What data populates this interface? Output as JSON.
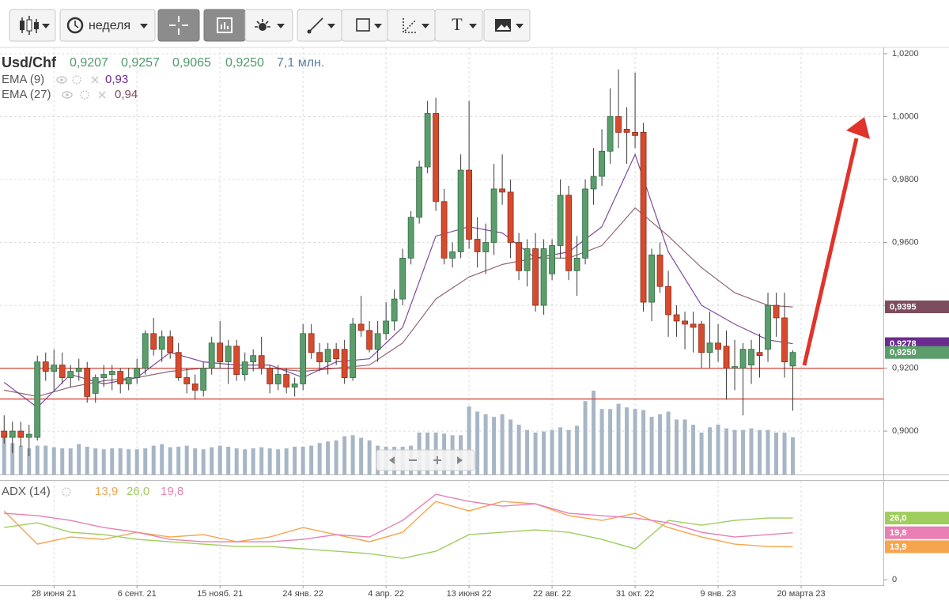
{
  "toolbar": {
    "period": "неделя",
    "text_tool": "T"
  },
  "chart_data": {
    "type": "candlestick",
    "title": "Usd/Chf",
    "ohlc_labels": [
      "0,9207",
      "0,9257",
      "0,9065",
      "0,9250"
    ],
    "volume_label": "7,1 млн.",
    "up_color": "#5b9e6c",
    "down_color": "#d64b2e",
    "volume_color": "#a7b6c6",
    "candles": [
      [
        0.9,
        0.905,
        0.896,
        0.898
      ],
      [
        0.898,
        0.903,
        0.893,
        0.9
      ],
      [
        0.9,
        0.903,
        0.895,
        0.898
      ],
      [
        0.898,
        0.902,
        0.892,
        0.899
      ],
      [
        0.898,
        0.924,
        0.897,
        0.922
      ],
      [
        0.922,
        0.925,
        0.916,
        0.919
      ],
      [
        0.919,
        0.926,
        0.913,
        0.921
      ],
      [
        0.921,
        0.925,
        0.915,
        0.917
      ],
      [
        0.917,
        0.921,
        0.914,
        0.919
      ],
      [
        0.919,
        0.923,
        0.916,
        0.92
      ],
      [
        0.92,
        0.922,
        0.909,
        0.911
      ],
      [
        0.912,
        0.918,
        0.909,
        0.917
      ],
      [
        0.917,
        0.921,
        0.914,
        0.918
      ],
      [
        0.918,
        0.921,
        0.913,
        0.919
      ],
      [
        0.919,
        0.92,
        0.912,
        0.915
      ],
      [
        0.915,
        0.92,
        0.913,
        0.917
      ],
      [
        0.917,
        0.923,
        0.915,
        0.92
      ],
      [
        0.92,
        0.932,
        0.918,
        0.931
      ],
      [
        0.931,
        0.936,
        0.924,
        0.926
      ],
      [
        0.926,
        0.932,
        0.922,
        0.93
      ],
      [
        0.93,
        0.932,
        0.923,
        0.925
      ],
      [
        0.925,
        0.928,
        0.916,
        0.917
      ],
      [
        0.917,
        0.92,
        0.912,
        0.915
      ],
      [
        0.915,
        0.918,
        0.91,
        0.913
      ],
      [
        0.913,
        0.922,
        0.911,
        0.92
      ],
      [
        0.92,
        0.93,
        0.918,
        0.928
      ],
      [
        0.928,
        0.935,
        0.92,
        0.922
      ],
      [
        0.922,
        0.929,
        0.915,
        0.927
      ],
      [
        0.927,
        0.929,
        0.916,
        0.918
      ],
      [
        0.918,
        0.925,
        0.916,
        0.922
      ],
      [
        0.922,
        0.926,
        0.919,
        0.924
      ],
      [
        0.924,
        0.93,
        0.918,
        0.92
      ],
      [
        0.92,
        0.921,
        0.912,
        0.915
      ],
      [
        0.915,
        0.921,
        0.913,
        0.918
      ],
      [
        0.918,
        0.92,
        0.912,
        0.914
      ],
      [
        0.914,
        0.917,
        0.911,
        0.915
      ],
      [
        0.915,
        0.934,
        0.913,
        0.931
      ],
      [
        0.931,
        0.934,
        0.923,
        0.925
      ],
      [
        0.925,
        0.928,
        0.919,
        0.922
      ],
      [
        0.922,
        0.928,
        0.918,
        0.926
      ],
      [
        0.926,
        0.928,
        0.921,
        0.923
      ],
      [
        0.926,
        0.929,
        0.915,
        0.917
      ],
      [
        0.917,
        0.936,
        0.916,
        0.934
      ],
      [
        0.934,
        0.943,
        0.93,
        0.932
      ],
      [
        0.932,
        0.935,
        0.925,
        0.926
      ],
      [
        0.926,
        0.935,
        0.922,
        0.931
      ],
      [
        0.931,
        0.941,
        0.929,
        0.935
      ],
      [
        0.935,
        0.945,
        0.932,
        0.942
      ],
      [
        0.942,
        0.958,
        0.94,
        0.955
      ],
      [
        0.955,
        0.97,
        0.953,
        0.968
      ],
      [
        0.968,
        0.986,
        0.966,
        0.984
      ],
      [
        0.984,
        1.005,
        0.982,
        1.001
      ],
      [
        1.001,
        1.006,
        0.97,
        0.973
      ],
      [
        0.973,
        0.977,
        0.953,
        0.955
      ],
      [
        0.955,
        0.96,
        0.952,
        0.957
      ],
      [
        0.957,
        0.988,
        0.955,
        0.983
      ],
      [
        0.983,
        1.005,
        0.958,
        0.961
      ],
      [
        0.961,
        0.968,
        0.952,
        0.957
      ],
      [
        0.957,
        0.966,
        0.95,
        0.96
      ],
      [
        0.96,
        0.985,
        0.956,
        0.977
      ],
      [
        0.977,
        0.988,
        0.972,
        0.976
      ],
      [
        0.976,
        0.98,
        0.955,
        0.96
      ],
      [
        0.96,
        0.963,
        0.948,
        0.951
      ],
      [
        0.951,
        0.961,
        0.946,
        0.958
      ],
      [
        0.958,
        0.963,
        0.938,
        0.94
      ],
      [
        0.94,
        0.961,
        0.937,
        0.958
      ],
      [
        0.95,
        0.961,
        0.948,
        0.959
      ],
      [
        0.959,
        0.98,
        0.955,
        0.975
      ],
      [
        0.975,
        0.978,
        0.948,
        0.951
      ],
      [
        0.951,
        0.962,
        0.943,
        0.955
      ],
      [
        0.955,
        0.98,
        0.953,
        0.977
      ],
      [
        0.977,
        0.99,
        0.972,
        0.981
      ],
      [
        0.981,
        0.996,
        0.978,
        0.989
      ],
      [
        0.989,
        1.009,
        0.985,
        1.0
      ],
      [
        1.0,
        1.015,
        0.99,
        0.995
      ],
      [
        0.996,
        1.003,
        0.985,
        0.995
      ],
      [
        0.995,
        1.014,
        0.99,
        0.994
      ],
      [
        0.995,
        0.998,
        0.938,
        0.941
      ],
      [
        0.941,
        0.958,
        0.935,
        0.956
      ],
      [
        0.956,
        0.96,
        0.944,
        0.946
      ],
      [
        0.946,
        0.951,
        0.93,
        0.937
      ],
      [
        0.937,
        0.94,
        0.93,
        0.935
      ],
      [
        0.935,
        0.938,
        0.926,
        0.934
      ],
      [
        0.934,
        0.938,
        0.925,
        0.933
      ],
      [
        0.934,
        0.935,
        0.92,
        0.925
      ],
      [
        0.925,
        0.938,
        0.92,
        0.928
      ],
      [
        0.928,
        0.934,
        0.922,
        0.926
      ],
      [
        0.927,
        0.932,
        0.91,
        0.92
      ],
      [
        0.92,
        0.929,
        0.913,
        0.9205
      ],
      [
        0.92,
        0.928,
        0.905,
        0.926
      ],
      [
        0.921,
        0.929,
        0.915,
        0.926
      ],
      [
        0.925,
        0.931,
        0.917,
        0.924
      ],
      [
        0.926,
        0.944,
        0.922,
        0.94
      ],
      [
        0.94,
        0.944,
        0.93,
        0.936
      ],
      [
        0.936,
        0.944,
        0.917,
        0.922
      ],
      [
        0.9207,
        0.9257,
        0.9065,
        0.925
      ]
    ],
    "volume": [
      7,
      6,
      5.5,
      5,
      5.5,
      5.5,
      5.2,
      5,
      5,
      5.8,
      5.3,
      5,
      4.8,
      5,
      5,
      4.8,
      4.8,
      5,
      5.5,
      5.8,
      5.2,
      5.3,
      5.5,
      5,
      4.8,
      5.2,
      5.5,
      5.3,
      5,
      4.8,
      5,
      5.2,
      5,
      4.8,
      5,
      5.3,
      5.3,
      5.5,
      6,
      6.3,
      6.5,
      7.3,
      7.5,
      7,
      6.5,
      5.5,
      5.3,
      5.3,
      5.3,
      5.5,
      8,
      8,
      8,
      7.8,
      7.5,
      7.5,
      13,
      12,
      11.5,
      11,
      11.5,
      10.5,
      9.5,
      8.5,
      8,
      8.2,
      8.5,
      9,
      8.5,
      9.3,
      14,
      16,
      12.5,
      12.5,
      13.5,
      12.8,
      12.5,
      12.3,
      11,
      11.5,
      12,
      10.5,
      10.5,
      9.5,
      8,
      9,
      9.5,
      8.8,
      8.5,
      8.5,
      8.8,
      8.5,
      8.5,
      8,
      8,
      7.1
    ],
    "xlim": [
      -0.5,
      106
    ],
    "xticks": [
      {
        "value": 6,
        "label": "28 июня 21"
      },
      {
        "value": 16,
        "label": "6 сент. 21"
      },
      {
        "value": 26,
        "label": "15 нояб. 21"
      },
      {
        "value": 36,
        "label": "24 янв. 22"
      },
      {
        "value": 46,
        "label": "4 апр. 22"
      },
      {
        "value": 56,
        "label": "13 июня 22"
      },
      {
        "value": 66,
        "label": "22 авг. 22"
      },
      {
        "value": 76,
        "label": "31 окт. 22"
      },
      {
        "value": 86,
        "label": "9 янв. 23"
      },
      {
        "value": 96,
        "label": "20 марта 23"
      }
    ],
    "ylim": [
      0.8862,
      1.022
    ],
    "yticks": [
      {
        "value": 0.9,
        "label": "0,9000"
      },
      {
        "value": 0.92,
        "label": "0,9200"
      },
      {
        "value": 0.94,
        "label": "0,9400"
      },
      {
        "value": 0.96,
        "label": "0,9600"
      },
      {
        "value": 0.98,
        "label": "0,9800"
      },
      {
        "value": 1.0,
        "label": "1,0000"
      },
      {
        "value": 1.02,
        "label": "1,0200"
      }
    ],
    "grid": true,
    "levels": [
      0.92,
      0.9102
    ],
    "level_color": "#d9463a",
    "last_price_tag": "0,9250",
    "overlays": [
      {
        "name": "EMA (9)",
        "color": "#6a2c8e",
        "legend_value": "0,93",
        "tag": "0,9278",
        "x": [
          0,
          4,
          8,
          12,
          16,
          20,
          24,
          28,
          32,
          36,
          40,
          44,
          48,
          52,
          56,
          60,
          64,
          68,
          72,
          76,
          80,
          84,
          88,
          92,
          95
        ],
        "values": [
          0.9155,
          0.9075,
          0.918,
          0.915,
          0.917,
          0.925,
          0.922,
          0.921,
          0.921,
          0.917,
          0.922,
          0.923,
          0.933,
          0.962,
          0.965,
          0.963,
          0.955,
          0.957,
          0.965,
          0.988,
          0.957,
          0.94,
          0.934,
          0.929,
          0.9278
        ]
      },
      {
        "name": "EMA (27)",
        "color": "#7d4c5e",
        "legend_value": "0,94",
        "tag": "0,9395",
        "x": [
          0,
          4,
          8,
          12,
          16,
          20,
          24,
          28,
          32,
          36,
          40,
          44,
          48,
          52,
          56,
          60,
          64,
          68,
          72,
          76,
          80,
          84,
          88,
          92,
          95
        ],
        "values": [
          0.913,
          0.911,
          0.914,
          0.916,
          0.917,
          0.919,
          0.92,
          0.92,
          0.92,
          0.919,
          0.92,
          0.921,
          0.928,
          0.942,
          0.949,
          0.953,
          0.955,
          0.955,
          0.959,
          0.971,
          0.962,
          0.952,
          0.944,
          0.94,
          0.9395
        ]
      }
    ],
    "indicator": {
      "name": "ADX (14)",
      "ylim": [
        -2.3,
        41.7
      ],
      "yticks": [
        0
      ],
      "series": [
        {
          "color": "#f5a54c",
          "legend_value": "13,9",
          "x": [
            0,
            4,
            8,
            12,
            16,
            20,
            24,
            28,
            32,
            36,
            40,
            44,
            48,
            52,
            56,
            60,
            64,
            68,
            72,
            76,
            80,
            84,
            88,
            92,
            95
          ],
          "values": [
            29,
            15,
            18,
            17,
            20,
            18,
            19,
            16,
            18,
            22,
            19,
            16,
            20,
            33,
            29,
            33,
            32,
            27,
            25,
            28,
            22,
            18,
            15,
            14,
            13.9
          ]
        },
        {
          "color": "#9fcd5e",
          "legend_value": "26,0",
          "x": [
            0,
            4,
            8,
            12,
            16,
            20,
            24,
            28,
            32,
            36,
            40,
            44,
            48,
            52,
            56,
            60,
            64,
            68,
            72,
            76,
            80,
            84,
            88,
            92,
            95
          ],
          "values": [
            22,
            24,
            20,
            19,
            17,
            16,
            15,
            14,
            14,
            13,
            12,
            11,
            9,
            12,
            19,
            20,
            21,
            20,
            17,
            13,
            25,
            23,
            25,
            26,
            26
          ]
        },
        {
          "color": "#e97fb4",
          "legend_value": "19,8",
          "x": [
            0,
            4,
            8,
            12,
            16,
            20,
            24,
            28,
            32,
            36,
            40,
            44,
            48,
            52,
            56,
            60,
            64,
            68,
            72,
            76,
            80,
            84,
            88,
            92,
            95
          ],
          "values": [
            28,
            27,
            25,
            22,
            20,
            17,
            16,
            16,
            16,
            17,
            19,
            18,
            25,
            36,
            33,
            31,
            32,
            28,
            27,
            26,
            24,
            20,
            18,
            19,
            19.8
          ]
        }
      ]
    }
  }
}
